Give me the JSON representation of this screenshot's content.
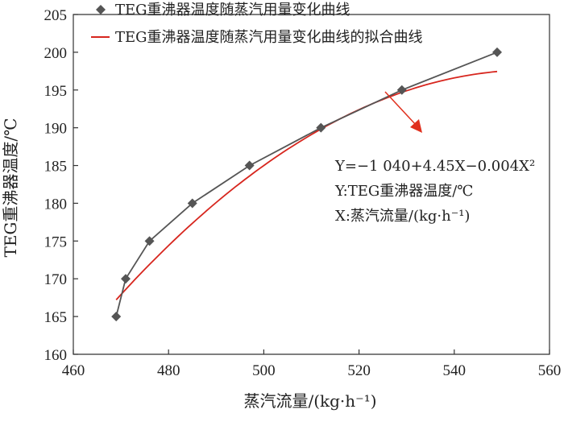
{
  "chart_data": {
    "type": "line",
    "xlabel": "蒸汽流量/(kg·h⁻¹)",
    "ylabel": "TEG重沸器温度/℃",
    "xlim": [
      460,
      560
    ],
    "ylim": [
      160,
      205
    ],
    "x_ticks": [
      "460",
      "480",
      "500",
      "520",
      "540",
      "560"
    ],
    "y_ticks": [
      "160",
      "165",
      "170",
      "175",
      "180",
      "185",
      "190",
      "195",
      "200",
      "205"
    ],
    "grid": false,
    "legend_position": "top-left",
    "series": [
      {
        "name": "TEG重沸器温度随蒸汽用量变化曲线",
        "style": "line-diamond",
        "color": "#555555",
        "x": [
          469,
          471,
          476,
          485,
          497,
          512,
          529,
          549
        ],
        "y": [
          165,
          170,
          175,
          180,
          185,
          190,
          195,
          200
        ]
      },
      {
        "name": "TEG重沸器温度随蒸汽用量变化曲线的拟合曲线",
        "style": "line",
        "color": "#d7261e",
        "fit": {
          "a": -1040,
          "b": 4.45,
          "c": -0.004,
          "x_start": 469,
          "x_end": 549
        }
      }
    ],
    "annotation": {
      "lines": [
        "Y=−1 040+4.45X−0.004X²",
        "Y:TEG重沸器温度/℃",
        "X:蒸汽流量/(kg·h⁻¹)"
      ],
      "arrow_color": "#e0301e"
    }
  }
}
